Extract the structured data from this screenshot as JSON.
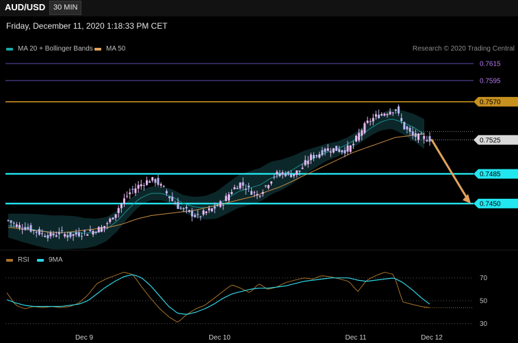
{
  "header": {
    "symbol": "AUD/USD",
    "timeframe": "30 MIN",
    "datetime": "Friday, December 11, 2020 1:18:33 PM CET",
    "credit": "Research © 2020 Trading Central"
  },
  "legends": {
    "price": [
      {
        "label": "MA 20 + Bollinger Bands",
        "color": "#19a9a9"
      },
      {
        "label": "MA 50",
        "color": "#e0a35c"
      }
    ],
    "rsi": [
      {
        "label": "RSI",
        "color": "#a8732a"
      },
      {
        "label": "9MA",
        "color": "#2dd6e6"
      }
    ]
  },
  "colors": {
    "background": "#000000",
    "up_candle": "#e9b8f2",
    "down_candle": "#b9b9f2",
    "resistance_line": "#c8911e",
    "support_line": "#22e6f0",
    "upper_level_line": "#5a4fae",
    "arrow": "#e0a35c"
  },
  "chart_data": [
    {
      "type": "candlestick",
      "x_labels": [
        "Dec 9",
        "Dec 10",
        "Dec 11",
        "Dec 12"
      ],
      "ylim": [
        0.74,
        0.764
      ],
      "levels": [
        {
          "label": "0.7615",
          "value": 0.7615,
          "style": "thin-purple"
        },
        {
          "label": "0.7595",
          "value": 0.7595,
          "style": "thin-purple"
        },
        {
          "label": "0.7570",
          "value": 0.757,
          "style": "resistance"
        },
        {
          "label": "0.7525",
          "value": 0.7525,
          "style": "current-price"
        },
        {
          "label": "0.7485",
          "value": 0.7485,
          "style": "support"
        },
        {
          "label": "0.7450",
          "value": 0.745,
          "style": "support"
        }
      ],
      "forecast_arrow": {
        "from": 0.7525,
        "to": 0.745
      },
      "close_path": [
        0.743,
        0.7424,
        0.7422,
        0.7418,
        0.7414,
        0.7412,
        0.7416,
        0.7412,
        0.7414,
        0.7416,
        0.7418,
        0.7422,
        0.7432,
        0.7448,
        0.7462,
        0.747,
        0.7476,
        0.7478,
        0.7468,
        0.7454,
        0.7444,
        0.744,
        0.7434,
        0.744,
        0.7445,
        0.7452,
        0.7466,
        0.7474,
        0.7466,
        0.746,
        0.7472,
        0.7484,
        0.7486,
        0.7484,
        0.749,
        0.7504,
        0.7508,
        0.7514,
        0.7514,
        0.7512,
        0.7518,
        0.7536,
        0.7548,
        0.7554,
        0.7558,
        0.7562,
        0.754,
        0.753,
        0.7528,
        0.7526
      ],
      "ma20_path": [
        0.7424,
        0.7422,
        0.742,
        0.7418,
        0.7416,
        0.7416,
        0.7416,
        0.7415,
        0.7416,
        0.742,
        0.743,
        0.7444,
        0.7456,
        0.7462,
        0.7462,
        0.7458,
        0.745,
        0.7446,
        0.7445,
        0.7448,
        0.7456,
        0.7464,
        0.7468,
        0.7472,
        0.748,
        0.7484,
        0.749,
        0.7498,
        0.7504,
        0.751,
        0.7514,
        0.752,
        0.7528,
        0.7538,
        0.7546,
        0.755,
        0.7546,
        0.754,
        0.7532
      ],
      "ma50_path": [
        0.7422,
        0.742,
        0.7418,
        0.7416,
        0.7416,
        0.7418,
        0.742,
        0.7422,
        0.7426,
        0.7432,
        0.7436,
        0.7438,
        0.744,
        0.7442,
        0.7446,
        0.745,
        0.7454,
        0.7458,
        0.7464,
        0.747,
        0.7478,
        0.7486,
        0.7494,
        0.7502,
        0.751,
        0.7516,
        0.7522,
        0.7528,
        0.753,
        0.7532
      ]
    },
    {
      "type": "line",
      "title": "RSI",
      "ylim": [
        25,
        80
      ],
      "y_ticks": [
        70,
        50,
        30
      ],
      "rsi_path": [
        57,
        46,
        43,
        45,
        44,
        45,
        44,
        45,
        48,
        55,
        65,
        69,
        72,
        75,
        73,
        62,
        52,
        43,
        36,
        31,
        38,
        43,
        46,
        52,
        58,
        64,
        61,
        57,
        65,
        60,
        62,
        66,
        68,
        70,
        69,
        72,
        71,
        69,
        67,
        58,
        68,
        72,
        75,
        73,
        49,
        47,
        45,
        44
      ],
      "rsi_ma_path": [
        51,
        48,
        46,
        45,
        45,
        45,
        45,
        46,
        47,
        50,
        56,
        62,
        67,
        71,
        73,
        70,
        63,
        54,
        45,
        39,
        38,
        40,
        43,
        47,
        52,
        56,
        58,
        60,
        61,
        61,
        62,
        63,
        65,
        67,
        68,
        69,
        70,
        70,
        70,
        68,
        67,
        68,
        69,
        70,
        66,
        60,
        53,
        47
      ]
    }
  ]
}
